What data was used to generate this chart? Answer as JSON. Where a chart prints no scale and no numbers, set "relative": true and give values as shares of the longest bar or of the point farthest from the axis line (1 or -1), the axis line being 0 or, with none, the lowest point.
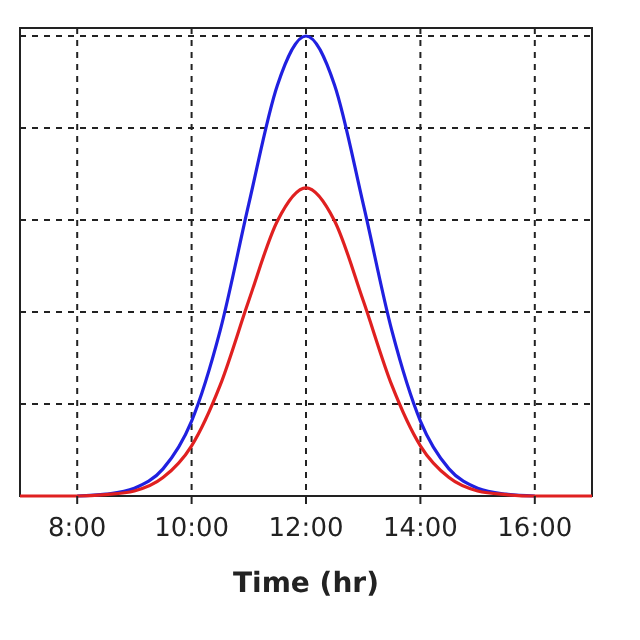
{
  "chart_data": {
    "type": "line",
    "xlabel": "Time (hr)",
    "relative": true,
    "grid": true,
    "line_style": "solid",
    "marker": "none",
    "x": [
      7,
      7.5,
      8,
      8.5,
      9,
      9.5,
      10,
      10.5,
      11,
      11.5,
      12,
      12.5,
      13,
      13.5,
      14,
      14.5,
      15,
      15.5,
      16,
      16.5,
      17
    ],
    "xlim": [
      7,
      17
    ],
    "xticks": [
      {
        "value": 8,
        "label": "8:00"
      },
      {
        "value": 10,
        "label": "10:00"
      },
      {
        "value": 12,
        "label": "12:00"
      },
      {
        "value": 14,
        "label": "14:00"
      },
      {
        "value": 16,
        "label": "16:00"
      }
    ],
    "series": [
      {
        "color": "#2020e0",
        "values": [
          null,
          null,
          0,
          0.004,
          0.017,
          0.059,
          0.163,
          0.36,
          0.635,
          0.893,
          1,
          0.893,
          0.635,
          0.36,
          0.163,
          0.059,
          0.017,
          0.004,
          0,
          null,
          null
        ]
      },
      {
        "color": "#e02020",
        "values": [
          0,
          0,
          0,
          0.003,
          0.011,
          0.04,
          0.109,
          0.241,
          0.425,
          0.598,
          0.67,
          0.598,
          0.425,
          0.241,
          0.109,
          0.04,
          0.011,
          0.003,
          0,
          0,
          0
        ]
      }
    ]
  }
}
